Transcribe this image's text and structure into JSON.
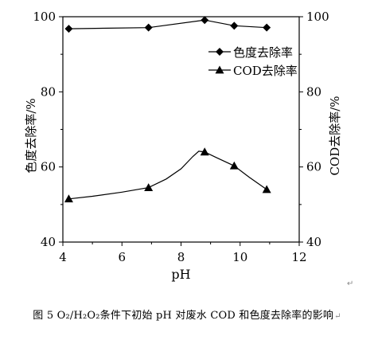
{
  "chart_data": {
    "type": "line",
    "xlabel": "pH",
    "ylabel_left": "色度去除率/%",
    "ylabel_right": "COD去除率/%",
    "xlim": [
      4,
      12
    ],
    "ylim_left": [
      40,
      100
    ],
    "ylim_right": [
      40,
      100
    ],
    "x_ticks": [
      4,
      6,
      8,
      10,
      12
    ],
    "y_ticks": [
      40,
      60,
      80,
      100
    ],
    "grid": false,
    "legend_position": "top-right",
    "series": [
      {
        "name": "色度去除率",
        "marker": "diamond",
        "axis": "left",
        "points": [
          [
            4.2,
            96.8
          ],
          [
            6.9,
            97.1
          ],
          [
            8.8,
            99.1
          ],
          [
            9.8,
            97.6
          ],
          [
            10.9,
            97.1
          ]
        ],
        "smooth_curve": [
          [
            4.2,
            96.8
          ],
          [
            6.9,
            97.1
          ],
          [
            8.8,
            99.1
          ],
          [
            9.8,
            97.6
          ],
          [
            10.9,
            97.1
          ]
        ]
      },
      {
        "name": "COD去除率",
        "marker": "triangle",
        "axis": "right",
        "points": [
          [
            4.2,
            51.5
          ],
          [
            6.9,
            54.5
          ],
          [
            8.8,
            64.0
          ],
          [
            9.8,
            60.3
          ],
          [
            10.9,
            54.0
          ]
        ],
        "smooth_curve": [
          [
            4.2,
            51.5
          ],
          [
            5.0,
            52.2
          ],
          [
            6.0,
            53.3
          ],
          [
            6.9,
            54.5
          ],
          [
            7.5,
            56.8
          ],
          [
            8.0,
            59.5
          ],
          [
            8.4,
            62.8
          ],
          [
            8.6,
            64.2
          ],
          [
            8.8,
            64.0
          ],
          [
            9.2,
            62.5
          ],
          [
            9.8,
            60.3
          ],
          [
            10.3,
            57.3
          ],
          [
            10.9,
            54.0
          ]
        ]
      }
    ]
  },
  "caption": "图 5  O₂/H₂O₂条件下初始 pH 对废水 COD 和色度去除率的影响",
  "caption_mark": "↵",
  "paragraph_mark": "↵"
}
